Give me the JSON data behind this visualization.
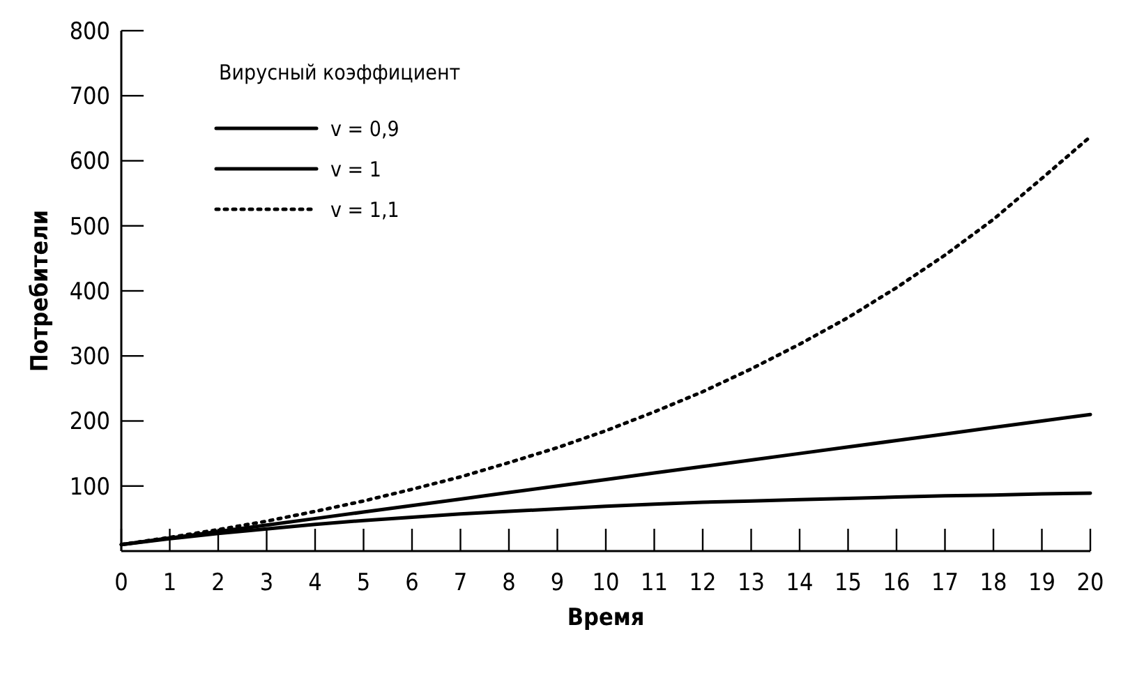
{
  "chart_data": {
    "type": "line",
    "xlabel": "Время",
    "ylabel": "Потребители",
    "legend_title": "Вирусный коэффициент",
    "legend": "top left",
    "grid": false,
    "marker": "none",
    "x": [
      0,
      1,
      2,
      3,
      4,
      5,
      6,
      7,
      8,
      9,
      10,
      11,
      12,
      13,
      14,
      15,
      16,
      17,
      18,
      19,
      20
    ],
    "xlim": [
      0,
      20
    ],
    "xticks": [
      0,
      1,
      2,
      3,
      4,
      5,
      6,
      7,
      8,
      9,
      10,
      11,
      12,
      13,
      14,
      15,
      16,
      17,
      18,
      19,
      20
    ],
    "ylim": [
      0,
      800
    ],
    "yticks": [
      100,
      200,
      300,
      400,
      500,
      600,
      700,
      800
    ],
    "series": [
      {
        "name": "v = 0,9",
        "color": "#000000",
        "line_style": "solid",
        "values": [
          10,
          19,
          27,
          34,
          41,
          47,
          52,
          57,
          61,
          65,
          69,
          72,
          75,
          77,
          79,
          81,
          83,
          85,
          86,
          88,
          89
        ]
      },
      {
        "name": "v = 1",
        "color": "#000000",
        "line_style": "solid",
        "values": [
          10,
          20,
          30,
          40,
          50,
          60,
          70,
          80,
          90,
          100,
          110,
          120,
          130,
          140,
          150,
          160,
          170,
          180,
          190,
          200,
          210
        ]
      },
      {
        "name": "v = 1,1",
        "color": "#000000",
        "line_style": "dotted",
        "values": [
          10,
          21,
          33,
          46,
          61,
          77,
          95,
          114,
          136,
          159,
          185,
          214,
          245,
          280,
          318,
          359,
          405,
          455,
          510,
          573,
          637
        ]
      }
    ]
  }
}
